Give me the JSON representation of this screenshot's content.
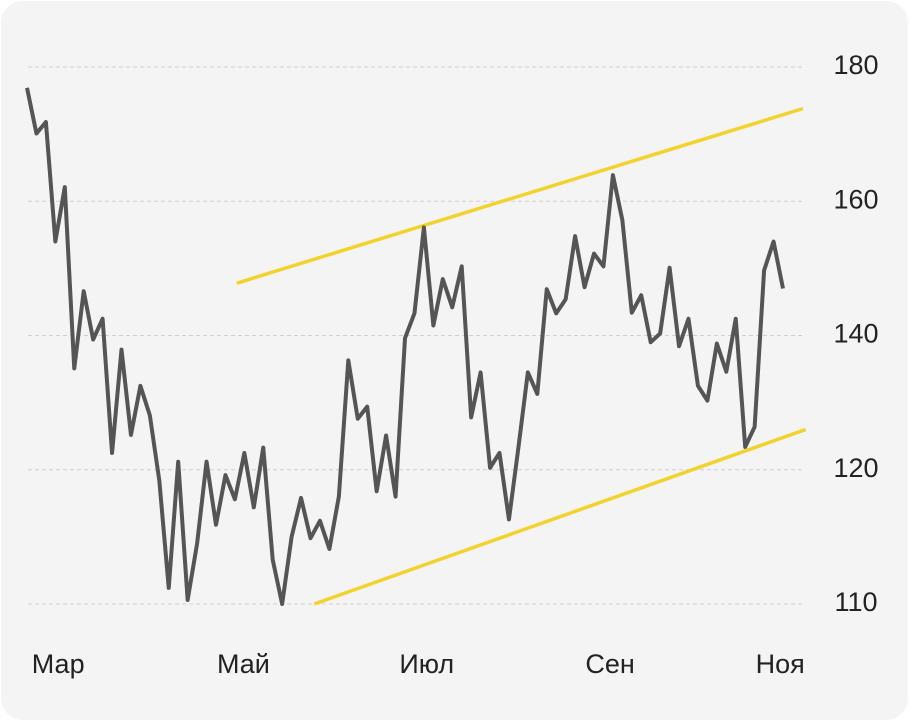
{
  "chart_data": {
    "type": "line",
    "series": [
      {
        "color": "#555555",
        "values": [
          176.9,
          170.1,
          171.8,
          154.0,
          162.1,
          135.1,
          146.6,
          139.4,
          142.5,
          122.5,
          137.9,
          125.2,
          132.5,
          128.1,
          119.2,
          111.2,
          121.2,
          110.3,
          114.5,
          121.2,
          115.9,
          119.6,
          117.8,
          122.5,
          117.2,
          123.3,
          113.3,
          110.0,
          115.0,
          117.9,
          114.9,
          116.2,
          114.1,
          118.0,
          136.3,
          127.6,
          129.4,
          118.4,
          125.1,
          118.0,
          139.6,
          143.3,
          156.1,
          141.5,
          148.4,
          144.2,
          150.3,
          127.8,
          134.5,
          120.3,
          122.5,
          116.3,
          123.3,
          134.5,
          131.3,
          146.9,
          143.3,
          145.4,
          154.8,
          147.2,
          152.2,
          150.3,
          163.9,
          157.2,
          143.4,
          146.0,
          139.0,
          140.3,
          150.1,
          138.4,
          142.5,
          132.5,
          130.3,
          138.8,
          134.6,
          142.5,
          123.4,
          126.4,
          149.7,
          154.0,
          147.0
        ]
      }
    ],
    "trendlines": [
      {
        "color": "#f2d22e",
        "x": [
          22.2,
          82.1
        ],
        "values": [
          147.8,
          173.8
        ]
      },
      {
        "color": "#f2d22e",
        "x": [
          30.4,
          82.4
        ],
        "values": [
          110.0,
          126.0
        ]
      }
    ],
    "xlim": [
      0,
      80
    ],
    "xticks": [
      {
        "value": 3.3,
        "label": "Мар"
      },
      {
        "value": 22.9,
        "label": "Май"
      },
      {
        "value": 42.3,
        "label": "Июл"
      },
      {
        "value": 61.7,
        "label": "Сен"
      },
      {
        "value": 79.7,
        "label": "Ноя"
      }
    ],
    "ylim": [
      110,
      180
    ],
    "yticks": [
      110,
      120,
      140,
      160,
      180
    ],
    "grid": true
  }
}
